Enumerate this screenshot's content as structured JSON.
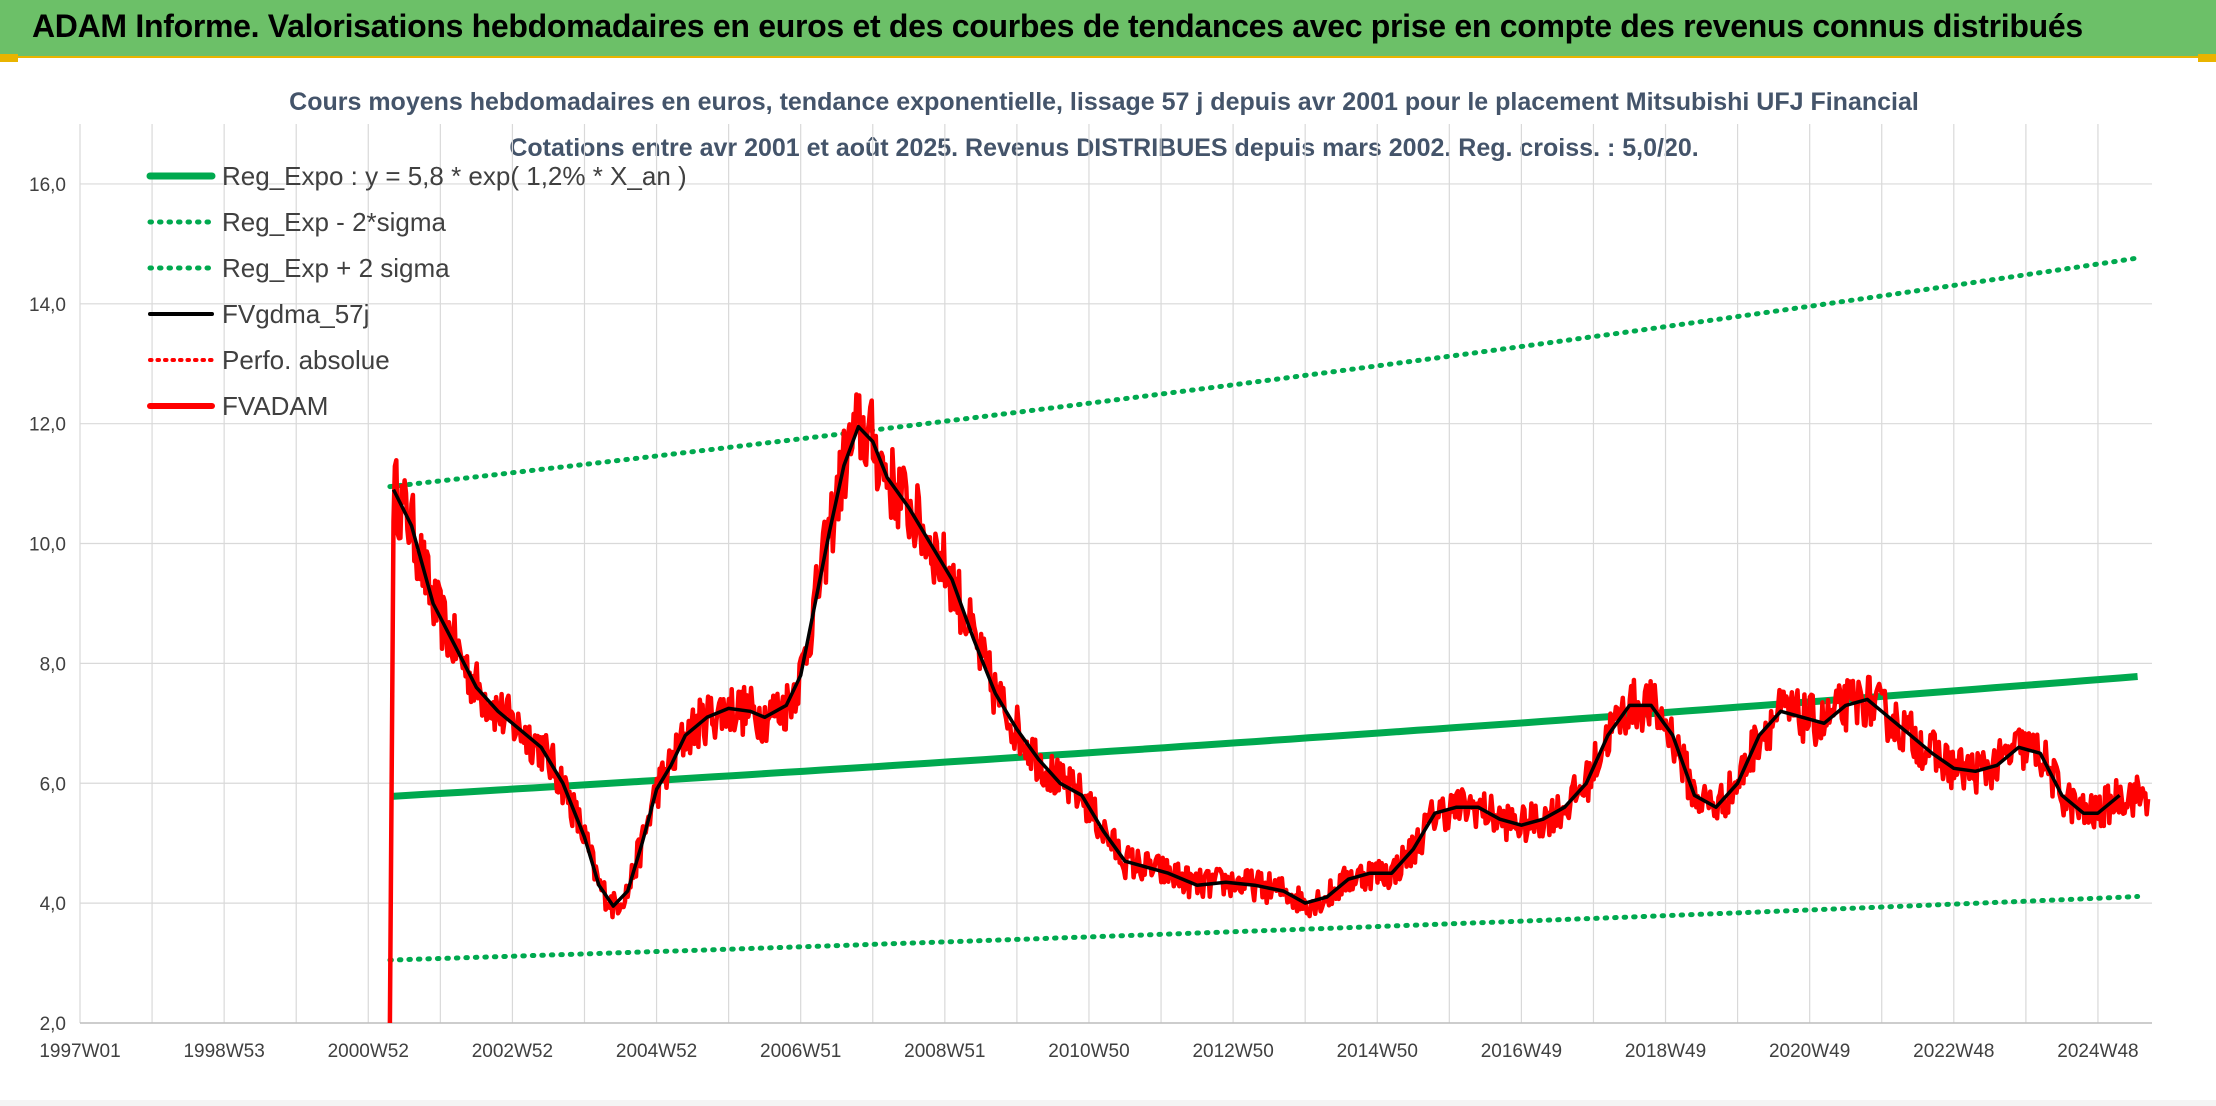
{
  "page": {
    "banner_title": "ADAM Informe. Valorisations hebdomadaires en euros et des courbes de tendances avec prise en compte des revenus connus distribués"
  },
  "colors": {
    "banner": "#6cc068",
    "green": "#00a94f",
    "red": "#ff0000",
    "black": "#000000",
    "grid": "#d9d9d9"
  },
  "chart_data": {
    "type": "line",
    "title": "Cours moyens hebdomadaires en euros, tendance exponentielle, lissage 57 j depuis avr 2001 pour le placement Mitsubishi UFJ Financial",
    "subtitle": "Cotations entre avr 2001 et août 2025. Revenus DISTRIBUES depuis mars 2002. Reg. croiss. : 5,0/20.",
    "xlabel": "",
    "ylabel": "",
    "xlim": [
      1997.0,
      2025.75
    ],
    "ylim": [
      2.0,
      17.0
    ],
    "y_ticks": [
      "2,0",
      "4,0",
      "6,0",
      "8,0",
      "10,0",
      "12,0",
      "14,0",
      "16,0"
    ],
    "x_ticks": [
      {
        "label": "1997W01",
        "x": 1997.0
      },
      {
        "label": "1998W53",
        "x": 1999.0
      },
      {
        "label": "2000W52",
        "x": 2001.0
      },
      {
        "label": "2002W52",
        "x": 2003.0
      },
      {
        "label": "2004W52",
        "x": 2005.0
      },
      {
        "label": "2006W51",
        "x": 2007.0
      },
      {
        "label": "2008W51",
        "x": 2009.0
      },
      {
        "label": "2010W50",
        "x": 2011.0
      },
      {
        "label": "2012W50",
        "x": 2013.0
      },
      {
        "label": "2014W50",
        "x": 2015.0
      },
      {
        "label": "2016W49",
        "x": 2017.0
      },
      {
        "label": "2018W49",
        "x": 2019.0
      },
      {
        "label": "2020W49",
        "x": 2021.0
      },
      {
        "label": "2022W48",
        "x": 2023.0
      },
      {
        "label": "2024W48",
        "x": 2025.0
      }
    ],
    "grid": true,
    "legend_position": "top-left",
    "series": [
      {
        "name": "Reg_Expo : y = 5,8 * exp( 1,2% *  X_an )",
        "color": "#00a94f",
        "style": "solid",
        "points": [
          [
            2001.3,
            5.78
          ],
          [
            2025.75,
            7.8
          ]
        ]
      },
      {
        "name": "Reg_Exp - 2*sigma",
        "color": "#00a94f",
        "style": "dotted",
        "points": [
          [
            2001.3,
            3.05
          ],
          [
            2025.75,
            4.12
          ]
        ]
      },
      {
        "name": "Reg_Exp + 2 sigma",
        "color": "#00a94f",
        "style": "dotted",
        "points": [
          [
            2001.3,
            10.95
          ],
          [
            2025.75,
            14.8
          ]
        ]
      },
      {
        "name": "FVgdma_57j",
        "color": "#000000",
        "style": "solid",
        "points": [
          [
            2001.35,
            10.9
          ],
          [
            2001.6,
            10.3
          ],
          [
            2001.9,
            9.0
          ],
          [
            2002.2,
            8.3
          ],
          [
            2002.5,
            7.6
          ],
          [
            2002.8,
            7.2
          ],
          [
            2003.1,
            6.9
          ],
          [
            2003.4,
            6.6
          ],
          [
            2003.7,
            6.0
          ],
          [
            2004.0,
            5.1
          ],
          [
            2004.2,
            4.3
          ],
          [
            2004.4,
            3.95
          ],
          [
            2004.6,
            4.2
          ],
          [
            2004.8,
            5.0
          ],
          [
            2005.0,
            5.9
          ],
          [
            2005.2,
            6.3
          ],
          [
            2005.4,
            6.8
          ],
          [
            2005.7,
            7.1
          ],
          [
            2006.0,
            7.25
          ],
          [
            2006.3,
            7.2
          ],
          [
            2006.5,
            7.1
          ],
          [
            2006.8,
            7.3
          ],
          [
            2007.0,
            7.8
          ],
          [
            2007.2,
            9.0
          ],
          [
            2007.4,
            10.2
          ],
          [
            2007.6,
            11.3
          ],
          [
            2007.8,
            11.95
          ],
          [
            2008.0,
            11.7
          ],
          [
            2008.2,
            11.1
          ],
          [
            2008.5,
            10.6
          ],
          [
            2008.8,
            10.0
          ],
          [
            2009.1,
            9.4
          ],
          [
            2009.4,
            8.4
          ],
          [
            2009.7,
            7.5
          ],
          [
            2010.0,
            6.9
          ],
          [
            2010.3,
            6.4
          ],
          [
            2010.6,
            6.0
          ],
          [
            2010.9,
            5.8
          ],
          [
            2011.2,
            5.2
          ],
          [
            2011.5,
            4.7
          ],
          [
            2011.8,
            4.6
          ],
          [
            2012.1,
            4.5
          ],
          [
            2012.5,
            4.3
          ],
          [
            2012.9,
            4.35
          ],
          [
            2013.3,
            4.3
          ],
          [
            2013.7,
            4.2
          ],
          [
            2014.0,
            4.0
          ],
          [
            2014.3,
            4.1
          ],
          [
            2014.6,
            4.4
          ],
          [
            2014.9,
            4.5
          ],
          [
            2015.2,
            4.5
          ],
          [
            2015.5,
            4.9
          ],
          [
            2015.8,
            5.5
          ],
          [
            2016.1,
            5.6
          ],
          [
            2016.4,
            5.6
          ],
          [
            2016.7,
            5.4
          ],
          [
            2017.0,
            5.3
          ],
          [
            2017.3,
            5.4
          ],
          [
            2017.6,
            5.6
          ],
          [
            2017.9,
            6.0
          ],
          [
            2018.2,
            6.8
          ],
          [
            2018.5,
            7.3
          ],
          [
            2018.8,
            7.3
          ],
          [
            2019.1,
            6.8
          ],
          [
            2019.4,
            5.8
          ],
          [
            2019.7,
            5.6
          ],
          [
            2020.0,
            6.0
          ],
          [
            2020.3,
            6.8
          ],
          [
            2020.6,
            7.2
          ],
          [
            2020.9,
            7.1
          ],
          [
            2021.2,
            7.0
          ],
          [
            2021.5,
            7.3
          ],
          [
            2021.8,
            7.4
          ],
          [
            2022.1,
            7.1
          ],
          [
            2022.4,
            6.8
          ],
          [
            2022.7,
            6.5
          ],
          [
            2023.0,
            6.25
          ],
          [
            2023.3,
            6.2
          ],
          [
            2023.6,
            6.3
          ],
          [
            2023.9,
            6.6
          ],
          [
            2024.2,
            6.5
          ],
          [
            2024.5,
            5.8
          ],
          [
            2024.8,
            5.5
          ],
          [
            2025.0,
            5.5
          ],
          [
            2025.3,
            5.8
          ]
        ]
      },
      {
        "name": "Perfo. absolue",
        "color": "#ff0000",
        "style": "dotted",
        "points": []
      },
      {
        "name": "FVADAM",
        "color": "#ff0000",
        "style": "solid",
        "points": []
      }
    ]
  }
}
